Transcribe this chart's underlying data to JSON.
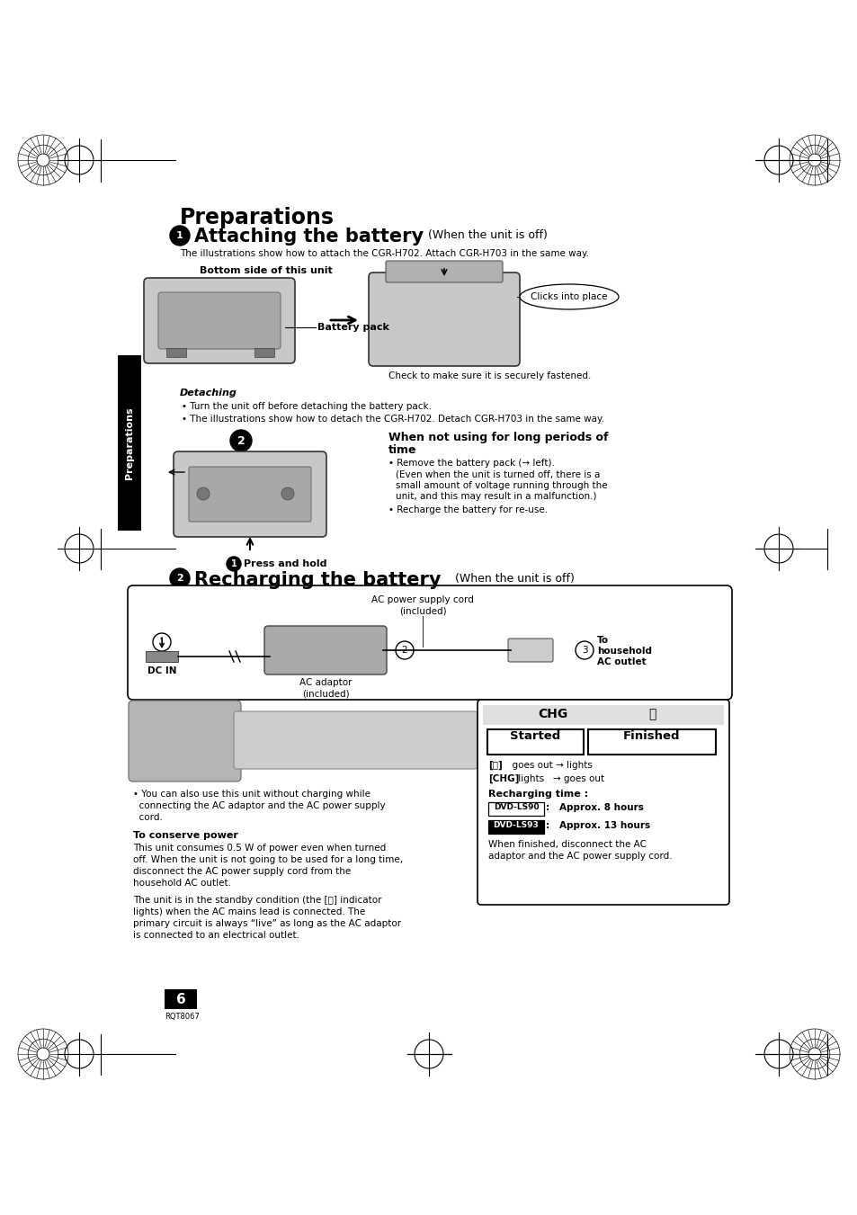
{
  "bg_color": "#ffffff",
  "page_width": 9.54,
  "page_height": 13.51,
  "title": "Preparations",
  "section1_num": "1",
  "section1_title": "Attaching the battery",
  "section1_subtitle": " (When the unit is off)",
  "section1_desc": "The illustrations show how to attach the CGR-H702. Attach CGR-H703 in the same way.",
  "bottom_label": "Bottom side of this unit",
  "battery_pack_label": "Battery pack",
  "clicks_label": "Clicks into place",
  "check_label": "Check to make sure it is securely fastened.",
  "detaching_title": "Detaching",
  "detach_bullet1": "Turn the unit off before detaching the battery pack.",
  "detach_bullet2": "The illustrations show how to detach the CGR-H702. Detach CGR-H703 in the same way.",
  "when_not_title1": "When not using for long periods of",
  "when_not_title2": "time",
  "when_not_b1": "Remove the battery pack (→ left).",
  "when_not_b2a": "(Even when the unit is turned off, there is a",
  "when_not_b2b": "small amount of voltage running through the",
  "when_not_b2c": "unit, and this may result in a malfunction.)",
  "when_not_b3": "Recharge the battery for re-use.",
  "press_label": "Press and hold",
  "section2_num": "2",
  "section2_title": "Recharging the battery",
  "section2_subtitle": " (When the unit is off)",
  "ac_cord_label1": "AC power supply cord",
  "ac_cord_label2": "(included)",
  "ac_adaptor_label1": "AC adaptor",
  "ac_adaptor_label2": "(included)",
  "dc_in_label": "DC IN",
  "to_label1": "To",
  "to_label2": "household",
  "to_label3": "AC outlet",
  "chg_label": "CHG",
  "started_label": "Started",
  "finished_label": "Finished",
  "ind_text1a": "[ⓘ]",
  "ind_text1b": "  goes out → lights",
  "ind_text2a": "[CHG]",
  "ind_text2b": " lights   → goes out",
  "recharging_time": "Recharging time :",
  "dvd90_label": "DVD-LS90",
  "dvd90_time": ":   Approx. 8 hours",
  "dvd93_label": "DVD-LS93",
  "dvd93_time": ":   Approx. 13 hours",
  "when_finished1": "When finished, disconnect the AC",
  "when_finished2": "adaptor and the AC power supply cord.",
  "you_can1": "• You can also use this unit without charging while",
  "you_can2": "  connecting the AC adaptor and the AC power supply",
  "you_can3": "  cord.",
  "conserve_title": "To conserve power",
  "conserve1": "This unit consumes 0.5 W of power even when turned",
  "conserve2": "off. When the unit is not going to be used for a long time,",
  "conserve3": "disconnect the AC power supply cord from the",
  "conserve4": "household AC outlet.",
  "standby1": "The unit is in the standby condition (the [ⓘ] indicator",
  "standby2": "lights) when the AC mains lead is connected. The",
  "standby3": "primary circuit is always “live” as long as the AC adaptor",
  "standby4": "is connected to an electrical outlet.",
  "page_num": "6",
  "page_code": "RQT8067",
  "sidebar_text": "Preparations"
}
